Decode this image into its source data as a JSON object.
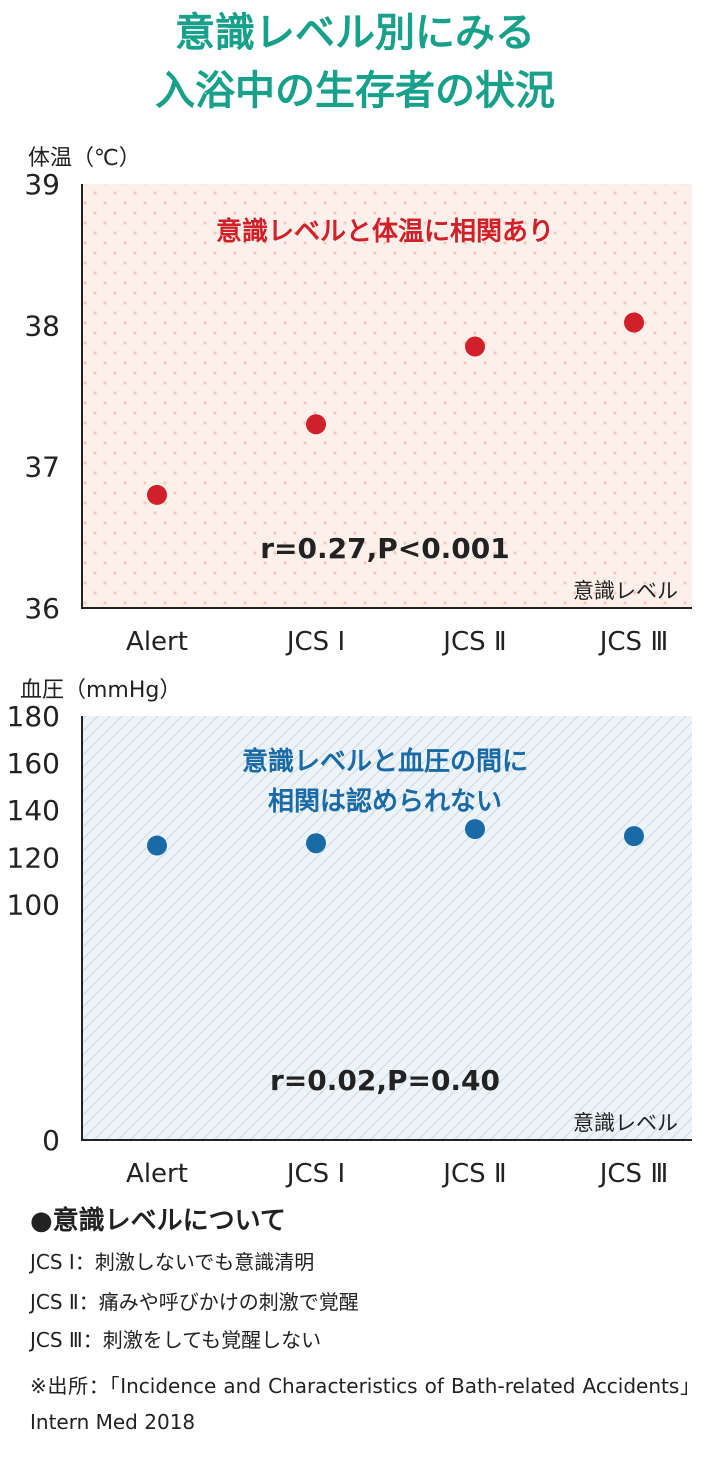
{
  "title": {
    "line1": "意識レベル別にみる",
    "line2": "入浴中の生存者の状況"
  },
  "chart_data": [
    {
      "type": "scatter",
      "ylabel": "体温（℃）",
      "xlabel": "意識レベル",
      "categories": [
        "Alert",
        "JCS Ⅰ",
        "JCS Ⅱ",
        "JCS Ⅲ"
      ],
      "values": [
        36.8,
        37.3,
        37.85,
        38.02
      ],
      "ylim": [
        36,
        39
      ],
      "yticks": [
        36,
        37,
        38,
        39
      ],
      "annotation": "意識レベルと体温に相関あり",
      "stat": "r=0.27,P<0.001",
      "colors": {
        "point": "#d0212a",
        "annotation": "#d0212a",
        "background": "#fdf0ea",
        "pattern": "#f5c9bd"
      }
    },
    {
      "type": "scatter",
      "ylabel": "血圧（mmHg）",
      "xlabel": "意識レベル",
      "categories": [
        "Alert",
        "JCS Ⅰ",
        "JCS Ⅱ",
        "JCS Ⅲ"
      ],
      "values": [
        125,
        126,
        132,
        129
      ],
      "ylim": [
        0,
        180
      ],
      "yticks": [
        0,
        100,
        120,
        140,
        160,
        180
      ],
      "annotation": [
        "意識レベルと血圧の間に",
        "相関は認められない"
      ],
      "stat": "r=0.02,P=0.40",
      "colors": {
        "point": "#1a6aa5",
        "annotation": "#1a6aa5",
        "background": "#eef3f8",
        "pattern": "#c9d8e6"
      }
    }
  ],
  "notes": {
    "heading": "●意識レベルについて",
    "items": [
      "JCS Ⅰ：刺激しないでも意識清明",
      "JCS Ⅱ：痛みや呼びかけの刺激で覚醒",
      "JCS Ⅲ：刺激をしても覚醒しない"
    ],
    "source": "※出所：「Incidence and Characteristics of Bath-related Accidents」Intern Med 2018"
  }
}
